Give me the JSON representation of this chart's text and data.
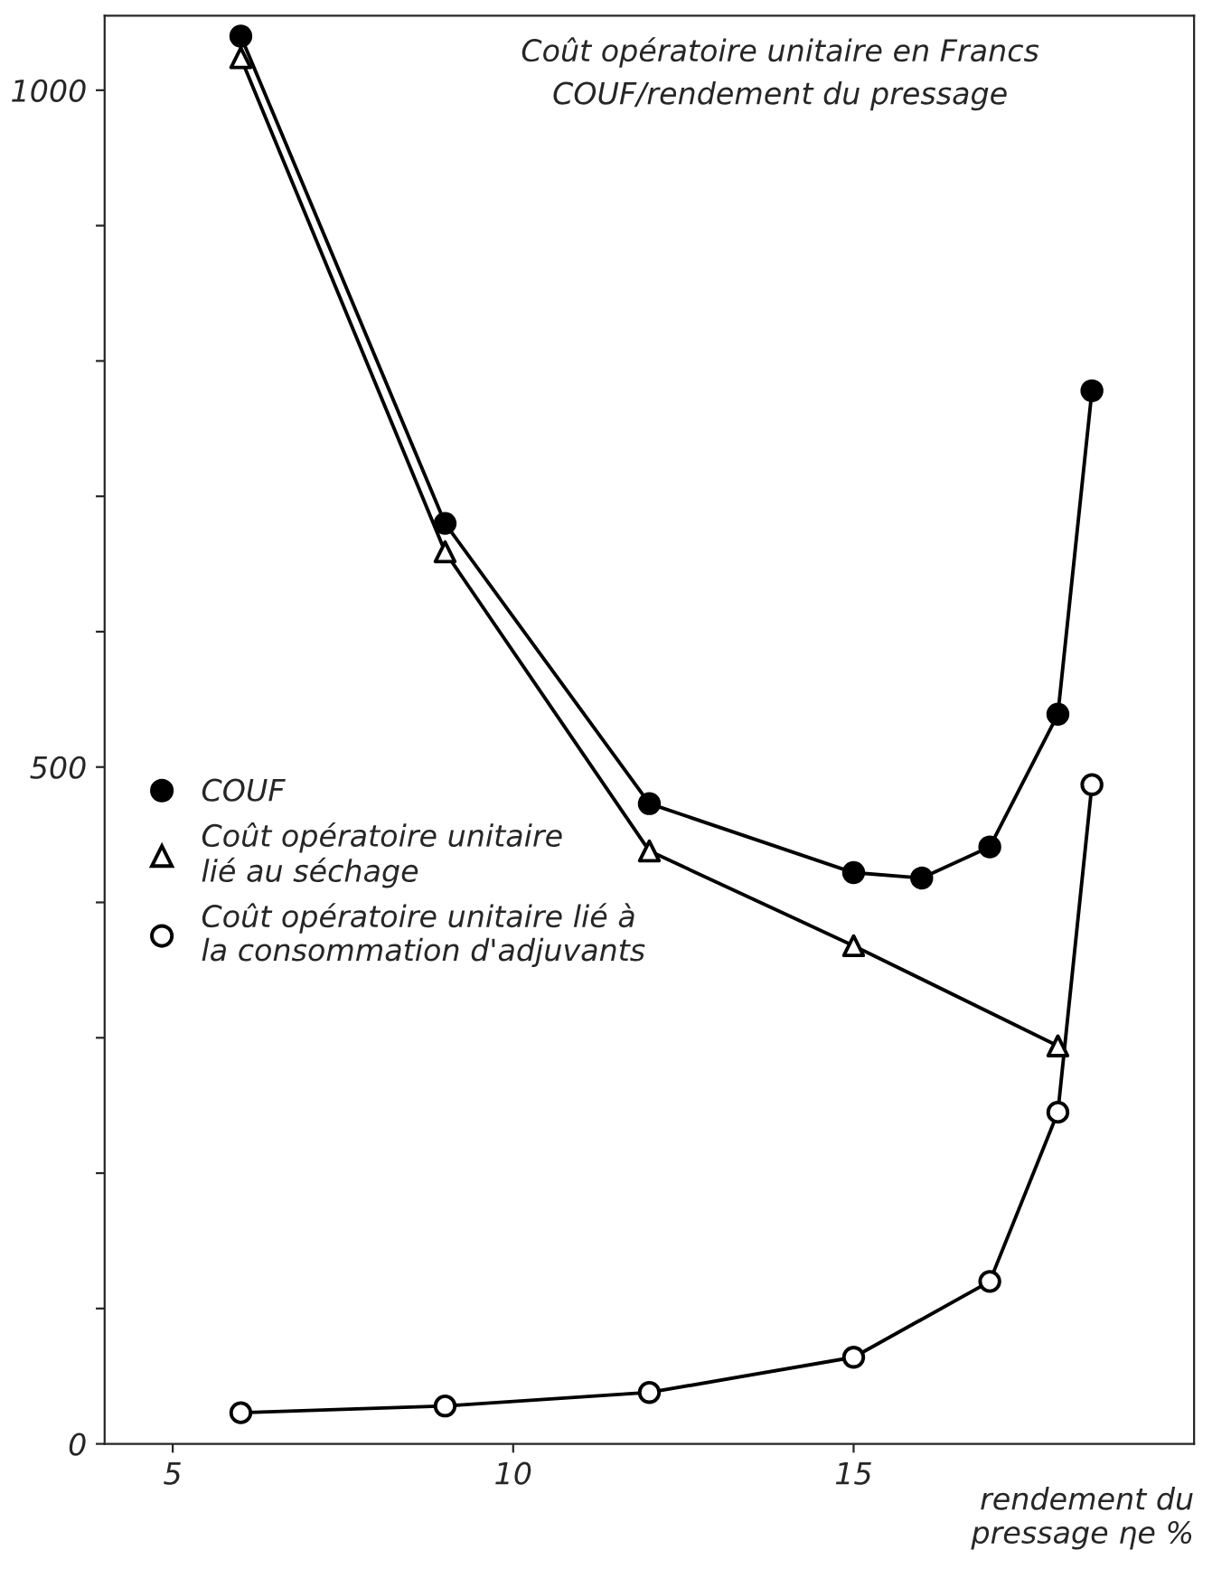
{
  "chart_data": {
    "type": "line",
    "title": "Coût opératoire unitaire en Francs\nCOUF/rendement du pressage",
    "xlabel": "rendement du\npressage ηe %",
    "xlim": [
      4,
      20
    ],
    "xticks": [
      5,
      10,
      15
    ],
    "ylim": [
      0,
      1055
    ],
    "yticks": [
      0,
      {
        "value": 100,
        "label": null
      },
      {
        "value": 200,
        "label": null
      },
      {
        "value": 300,
        "label": null
      },
      {
        "value": 400,
        "label": null
      },
      500,
      {
        "value": 600,
        "label": null
      },
      {
        "value": 700,
        "label": null
      },
      {
        "value": 800,
        "label": null
      },
      {
        "value": 900,
        "label": null
      },
      1000
    ],
    "grid": false,
    "legend": "left",
    "line_style": "solid",
    "series": [
      {
        "name": "COUF",
        "color": "#000000",
        "marker": "circle",
        "x": [
          6,
          9,
          12,
          15,
          16,
          17,
          18,
          18.5
        ],
        "values": [
          1040,
          680,
          473,
          422,
          418,
          441,
          539,
          778
        ]
      },
      {
        "name": "Coût opératoire unitaire\nlié au séchage",
        "color": "#000000",
        "marker": "triangle",
        "x": [
          6,
          9,
          12,
          15,
          18
        ],
        "values": [
          1024,
          659,
          438,
          368,
          294
        ]
      },
      {
        "name": "Coût opératoire unitaire lié à\nla consommation d'adjuvants",
        "color": "#000000",
        "marker": "circle",
        "x": [
          6,
          9,
          12,
          15,
          17,
          18,
          18.5
        ],
        "values": [
          23,
          28,
          38,
          64,
          120,
          245,
          487
        ]
      }
    ]
  }
}
